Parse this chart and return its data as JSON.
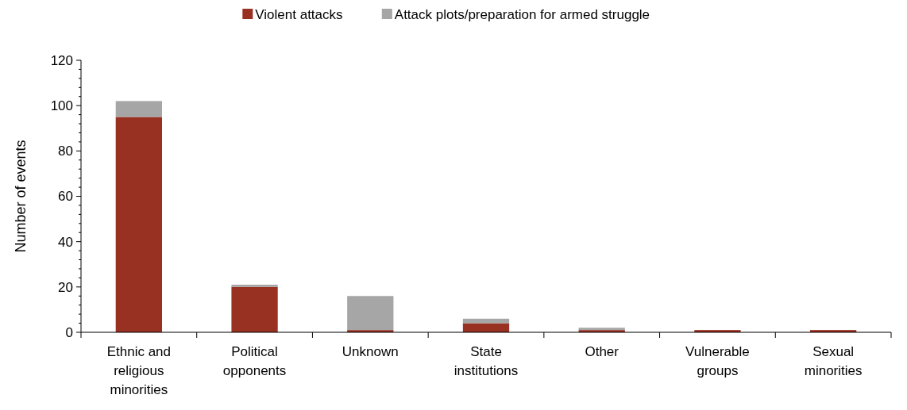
{
  "chart_data": {
    "type": "bar",
    "stacked": true,
    "ylabel": "Number of events",
    "legend": "top",
    "categories": [
      "Ethnic and religious minorities",
      "Political opponents",
      "Unknown",
      "State institutions",
      "Other",
      "Vulnerable groups",
      "Sexual minorities"
    ],
    "series": [
      {
        "name": "Violent attacks",
        "color": "#993123",
        "values": [
          95,
          20,
          1,
          4,
          1,
          1,
          1
        ]
      },
      {
        "name": "Attack plots/preparation for armed struggle",
        "color": "#a6a6a6",
        "values": [
          7,
          1,
          15,
          2,
          1,
          0,
          0
        ]
      }
    ],
    "ylim": [
      0,
      120
    ],
    "yticks": [
      0,
      {
        "value": 4,
        "label": null
      },
      {
        "value": 8,
        "label": null
      },
      {
        "value": 12,
        "label": null
      },
      {
        "value": 16,
        "label": null
      },
      20,
      {
        "value": 24,
        "label": null
      },
      {
        "value": 28,
        "label": null
      },
      {
        "value": 32,
        "label": null
      },
      {
        "value": 36,
        "label": null
      },
      40,
      {
        "value": 44,
        "label": null
      },
      {
        "value": 48,
        "label": null
      },
      {
        "value": 52,
        "label": null
      },
      {
        "value": 56,
        "label": null
      },
      60,
      {
        "value": 64,
        "label": null
      },
      {
        "value": 68,
        "label": null
      },
      {
        "value": 72,
        "label": null
      },
      {
        "value": 76,
        "label": null
      },
      80,
      {
        "value": 84,
        "label": null
      },
      {
        "value": 88,
        "label": null
      },
      {
        "value": 92,
        "label": null
      },
      {
        "value": 96,
        "label": null
      },
      100,
      {
        "value": 104,
        "label": null
      },
      {
        "value": 108,
        "label": null
      },
      {
        "value": 112,
        "label": null
      },
      {
        "value": 116,
        "label": null
      },
      120
    ]
  }
}
